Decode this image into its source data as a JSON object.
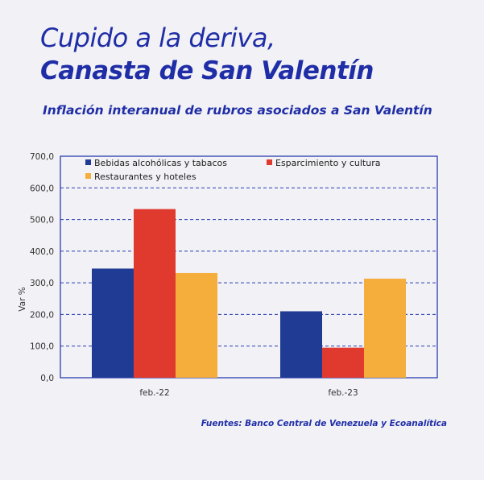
{
  "title_line1": "Cupido a la deriva,",
  "title_line2": "Canasta de San Valentín",
  "subtitle": "Inflación interanual de rubros asociados a San Valentín",
  "source": "Fuentes: Banco Central de Venezuela y Ecoanalítica",
  "colors": {
    "brand": "#1f2ea6",
    "series": [
      "#1f3b93",
      "#e03a2f",
      "#f5ad3c"
    ],
    "grid": "#2a3db0"
  },
  "chart_data": {
    "type": "bar",
    "categories": [
      "feb.-22",
      "feb.-23"
    ],
    "series": [
      {
        "name": "Bebidas alcohólicas y tabacos",
        "values": [
          345,
          210
        ]
      },
      {
        "name": "Esparcimiento y cultura",
        "values": [
          533,
          95
        ]
      },
      {
        "name": "Restaurantes y hoteles",
        "values": [
          331,
          313
        ]
      }
    ],
    "ylabel": "Var %",
    "ylim": [
      0,
      700
    ],
    "yticks": [
      "0,0",
      "100,0",
      "200,0",
      "300,0",
      "400,0",
      "500,0",
      "600,0",
      "700,0"
    ],
    "grid": true,
    "legend_position": "top"
  }
}
